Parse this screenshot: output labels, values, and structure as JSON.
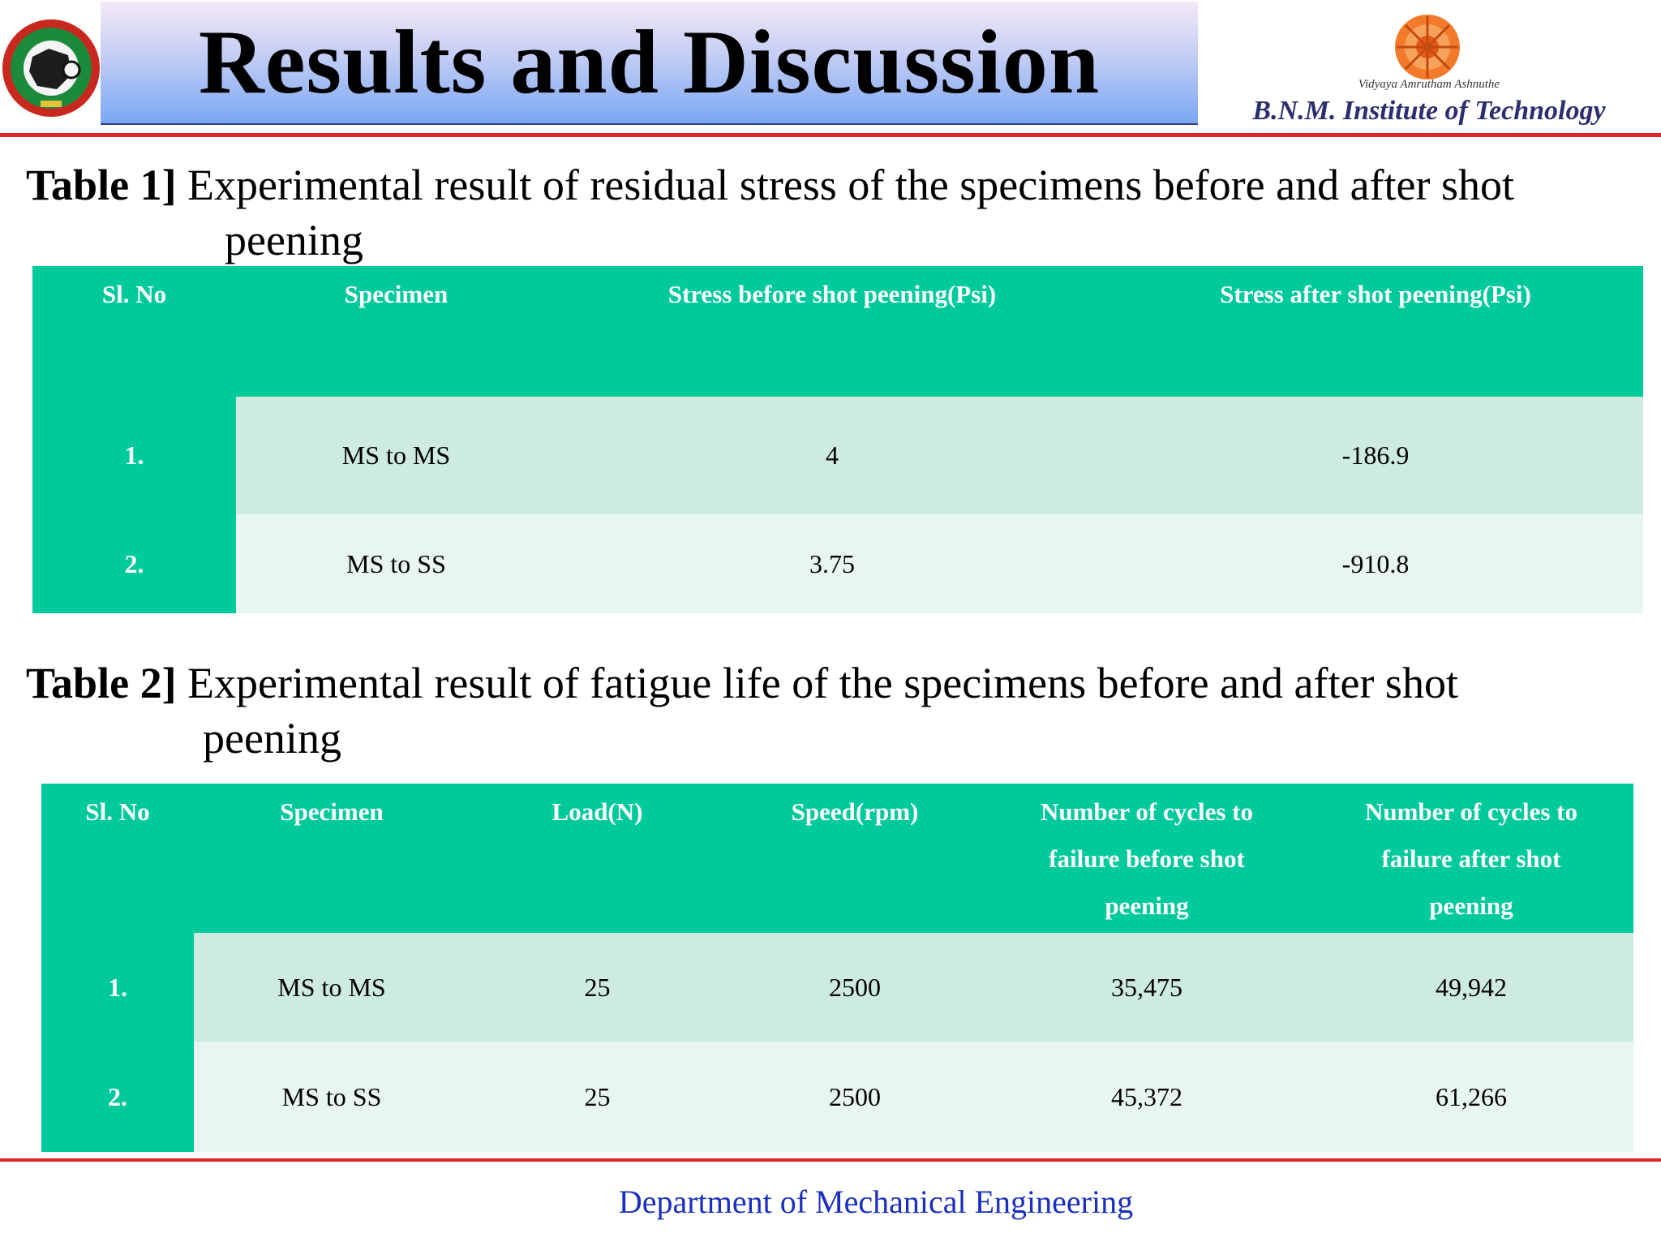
{
  "header": {
    "title": "Results and Discussion",
    "institute_motto": "Vidyaya Amrutham Ashnuthe",
    "institute_name": "B.N.M. Institute of Technology"
  },
  "table1": {
    "caption_label": "Table 1]",
    "caption_text": "Experimental result of residual stress of the specimens before and after shot",
    "caption_cont": "peening",
    "columns": [
      "Sl. No",
      "Specimen",
      "Stress before shot peening(Psi)",
      "Stress after shot peening(Psi)"
    ],
    "rows": [
      [
        "1.",
        "MS to MS",
        "4",
        "-186.9"
      ],
      [
        "2.",
        "MS to SS",
        "3.75",
        "-910.8"
      ]
    ]
  },
  "table2": {
    "caption_label": "Table 2]",
    "caption_text": "Experimental result of fatigue life of the specimens before and after shot",
    "caption_cont": "peening",
    "columns": [
      "Sl. No",
      "Specimen",
      "Load(N)",
      "Speed(rpm)",
      "Number of cycles to failure before shot peening",
      "Number of cycles to failure  after shot peening"
    ],
    "rows": [
      [
        "1.",
        "MS to MS",
        "25",
        "2500",
        "35,475",
        "49,942"
      ],
      [
        "2.",
        "MS to SS",
        "25",
        "2500",
        "45,372",
        "61,266"
      ]
    ]
  },
  "footer": {
    "department": "Department of Mechanical Engineering"
  },
  "colors": {
    "accent_green": "#00c99c",
    "rule_red": "#e0262a",
    "footer_blue": "#1a2fbf"
  },
  "icons": {
    "left_logo": "university-emblem-icon",
    "right_logo": "institute-emblem-icon"
  }
}
